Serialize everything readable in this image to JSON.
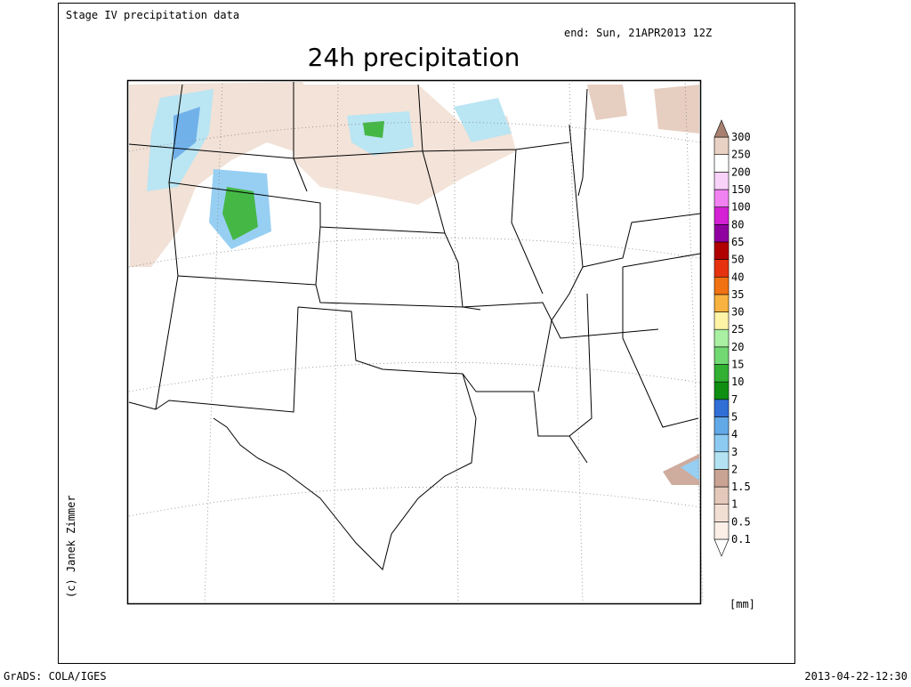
{
  "header": {
    "source": "Stage IV precipitation data",
    "valid": "end: Sun, 21APR2013 12Z",
    "title": "24h precipitation"
  },
  "legend": {
    "levels": [
      0.1,
      0.5,
      1,
      1.5,
      2,
      3,
      4,
      5,
      7,
      10,
      15,
      20,
      25,
      30,
      35,
      40,
      50,
      65,
      80,
      100,
      150,
      200,
      250,
      300
    ],
    "colors": [
      "#ffffff",
      "#fbefe8",
      "#f2dfd3",
      "#e4c9ba",
      "#c9a393",
      "#b3e3f2",
      "#8ccaf2",
      "#62a9e8",
      "#2f6fd6",
      "#0f8f12",
      "#31b031",
      "#72d872",
      "#a9f0a2",
      "#fff3a6",
      "#f9b23f",
      "#f17212",
      "#e6320f",
      "#b00000",
      "#8f00a0",
      "#d321d3",
      "#f282f2",
      "#f9d2f9",
      "#ffffff",
      "#e9d2c3",
      "#a88070"
    ],
    "unit": "[mm]"
  },
  "credit": "(c) Janek Zimmer",
  "footer": {
    "software": "GrADS: COLA/IGES",
    "timestamp": "2013-04-22-12:30"
  }
}
